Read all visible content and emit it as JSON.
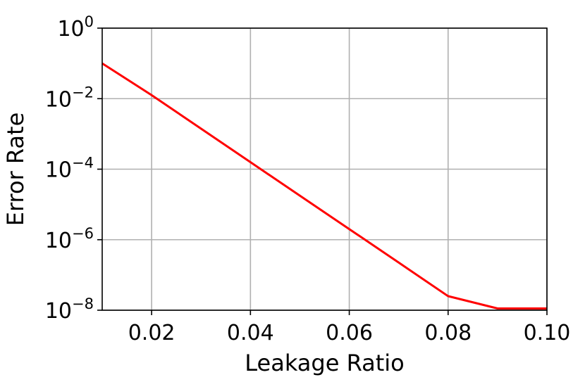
{
  "chart_data": {
    "type": "line",
    "xlabel": "Leakage Ratio",
    "ylabel": "Error Rate",
    "x_scale": "linear",
    "y_scale": "log",
    "xlim": [
      0.01,
      0.1
    ],
    "ylim": [
      1e-08,
      1
    ],
    "x_ticks": [
      {
        "value": 0.02,
        "label": "0.02"
      },
      {
        "value": 0.04,
        "label": "0.04"
      },
      {
        "value": 0.06,
        "label": "0.06"
      },
      {
        "value": 0.08,
        "label": "0.08"
      },
      {
        "value": 0.1,
        "label": "0.10"
      }
    ],
    "y_ticks": [
      {
        "value": 1e-08,
        "base": "10",
        "exp": "−8"
      },
      {
        "value": 1e-06,
        "base": "10",
        "exp": "−6"
      },
      {
        "value": 0.0001,
        "base": "10",
        "exp": "−4"
      },
      {
        "value": 0.01,
        "base": "10",
        "exp": "−2"
      },
      {
        "value": 1,
        "base": "10",
        "exp": "0"
      }
    ],
    "grid": true,
    "series": [
      {
        "color": "#ff0000",
        "points": [
          {
            "x": 0.01,
            "y": 0.1
          },
          {
            "x": 0.02,
            "y": 0.0126
          },
          {
            "x": 0.03,
            "y": 0.00141
          },
          {
            "x": 0.04,
            "y": 0.000158
          },
          {
            "x": 0.05,
            "y": 1.78e-05
          },
          {
            "x": 0.06,
            "y": 2e-06
          },
          {
            "x": 0.07,
            "y": 2.24e-07
          },
          {
            "x": 0.08,
            "y": 2.51e-08
          },
          {
            "x": 0.09,
            "y": 1.12e-08
          },
          {
            "x": 0.1,
            "y": 1.12e-08
          }
        ]
      }
    ]
  }
}
